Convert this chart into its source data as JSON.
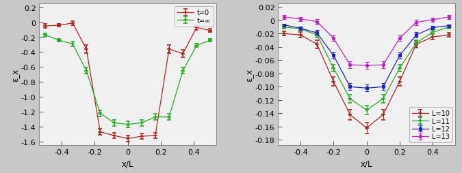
{
  "left": {
    "xlabel": "x/L",
    "ylabel": "ε_x",
    "xlim": [
      -0.535,
      0.535
    ],
    "ylim": [
      -1.65,
      0.25
    ],
    "yticks": [
      0.2,
      0.0,
      -0.2,
      -0.4,
      -0.6,
      -0.8,
      -1.0,
      -1.2,
      -1.4,
      -1.6
    ],
    "xticks": [
      -0.4,
      -0.2,
      0.0,
      0.2,
      0.4
    ],
    "legend_loc": "upper right",
    "series": [
      {
        "label": "t=0",
        "color": "#aa2222",
        "marker": "+",
        "x": [
          -0.5,
          -0.4167,
          -0.3333,
          -0.25,
          -0.1667,
          -0.0833,
          0.0,
          0.0833,
          0.1667,
          0.25,
          0.3333,
          0.4167,
          0.5
        ],
        "y": [
          -0.05,
          -0.04,
          -0.01,
          -0.36,
          -1.47,
          -1.52,
          -1.56,
          -1.53,
          -1.52,
          -0.36,
          -0.42,
          -0.07,
          -0.11
        ],
        "yerr": [
          0.025,
          0.02,
          0.025,
          0.055,
          0.04,
          0.04,
          0.04,
          0.04,
          0.04,
          0.055,
          0.05,
          0.03,
          0.025
        ]
      },
      {
        "label": "t=∞",
        "color": "#22aa22",
        "marker": "+",
        "x": [
          -0.5,
          -0.4167,
          -0.3333,
          -0.25,
          -0.1667,
          -0.0833,
          0.0,
          0.0833,
          0.1667,
          0.25,
          0.3333,
          0.4167,
          0.5
        ],
        "y": [
          -0.17,
          -0.24,
          -0.29,
          -0.65,
          -1.22,
          -1.35,
          -1.37,
          -1.35,
          -1.27,
          -1.27,
          -0.65,
          -0.31,
          -0.24
        ],
        "yerr": [
          0.02,
          0.02,
          0.03,
          0.04,
          0.04,
          0.04,
          0.04,
          0.04,
          0.04,
          0.04,
          0.04,
          0.025,
          0.02
        ]
      }
    ]
  },
  "right": {
    "xlabel": "x/L",
    "ylabel": "ε_x",
    "xlim": [
      -0.535,
      0.535
    ],
    "ylim": [
      -0.188,
      0.025
    ],
    "yticks": [
      0.02,
      0.0,
      -0.02,
      -0.04,
      -0.06,
      -0.08,
      -0.1,
      -0.12,
      -0.14,
      -0.16,
      -0.18
    ],
    "xticks": [
      -0.4,
      -0.2,
      0.0,
      0.2,
      0.4
    ],
    "legend_loc": "lower right",
    "series": [
      {
        "label": "L=10",
        "color": "#aa2222",
        "marker": "+",
        "x": [
          -0.5,
          -0.4,
          -0.3,
          -0.2,
          -0.1,
          0.0,
          0.1,
          0.2,
          0.3,
          0.4,
          0.5
        ],
        "y": [
          -0.02,
          -0.022,
          -0.036,
          -0.092,
          -0.142,
          -0.162,
          -0.142,
          -0.092,
          -0.036,
          -0.025,
          -0.022
        ],
        "yerr": [
          0.003,
          0.004,
          0.006,
          0.007,
          0.008,
          0.008,
          0.008,
          0.007,
          0.005,
          0.004,
          0.003
        ]
      },
      {
        "label": "L=11",
        "color": "#22aa22",
        "marker": "+",
        "x": [
          -0.5,
          -0.4,
          -0.3,
          -0.2,
          -0.1,
          0.0,
          0.1,
          0.2,
          0.3,
          0.4,
          0.5
        ],
        "y": [
          -0.01,
          -0.013,
          -0.022,
          -0.072,
          -0.118,
          -0.135,
          -0.118,
          -0.072,
          -0.034,
          -0.018,
          -0.01
        ],
        "yerr": [
          0.003,
          0.003,
          0.004,
          0.005,
          0.006,
          0.007,
          0.006,
          0.005,
          0.004,
          0.003,
          0.003
        ]
      },
      {
        "label": "L=12",
        "color": "#2222bb",
        "marker": "s",
        "x": [
          -0.5,
          -0.4,
          -0.3,
          -0.2,
          -0.1,
          0.0,
          0.1,
          0.2,
          0.3,
          0.4,
          0.5
        ],
        "y": [
          -0.007,
          -0.012,
          -0.019,
          -0.053,
          -0.1,
          -0.102,
          -0.1,
          -0.053,
          -0.022,
          -0.011,
          -0.008
        ],
        "yerr": [
          0.002,
          0.003,
          0.004,
          0.005,
          0.005,
          0.005,
          0.005,
          0.005,
          0.004,
          0.003,
          0.002
        ]
      },
      {
        "label": "L=13",
        "color": "#bb22bb",
        "marker": "o",
        "x": [
          -0.5,
          -0.4,
          -0.3,
          -0.2,
          -0.1,
          0.0,
          0.1,
          0.2,
          0.3,
          0.4,
          0.5
        ],
        "y": [
          0.005,
          0.002,
          -0.002,
          -0.027,
          -0.067,
          -0.068,
          -0.067,
          -0.027,
          -0.003,
          0.001,
          0.005
        ],
        "yerr": [
          0.003,
          0.003,
          0.004,
          0.004,
          0.005,
          0.005,
          0.005,
          0.004,
          0.004,
          0.003,
          0.003
        ]
      }
    ]
  },
  "fig_bg_color": "#c8c8c8",
  "plot_bg_color": "#f0f0f0",
  "tick_color": "#444444",
  "spine_color": "#888888",
  "font_size": 8.0,
  "label_size": 8.5
}
